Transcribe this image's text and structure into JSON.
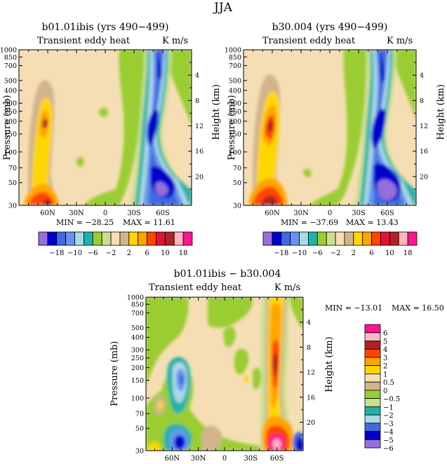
{
  "page": {
    "title": "JJA"
  },
  "colorbar_top": {
    "labels": [
      "-18",
      "-10",
      "-6",
      "-2",
      "2",
      "6",
      "10",
      "18"
    ],
    "colors": [
      "#9370db",
      "#0000cd",
      "#4169e1",
      "#6495ed",
      "#add8e6",
      "#20b2aa",
      "#9acd32",
      "#c8e090",
      "#f5deb3",
      "#d2b48c",
      "#ffd700",
      "#ffa500",
      "#ff4500",
      "#dc143c",
      "#b22222",
      "#ffb6c1",
      "#ff1493"
    ]
  },
  "colorbar_bottom": {
    "labels": [
      "6",
      "5",
      "4",
      "3",
      "2",
      "1",
      "0.5",
      "0",
      "-0.5",
      "-1",
      "-2",
      "-3",
      "-4",
      "-5",
      "-6"
    ],
    "colors": [
      "#ff1493",
      "#ffb6c1",
      "#b22222",
      "#ff4500",
      "#ffa500",
      "#ffd700",
      "#f5deb3",
      "#d2b48c",
      "#9acd32",
      "#c8e090",
      "#20b2aa",
      "#add8e6",
      "#4169e1",
      "#0000cd",
      "#9370db"
    ]
  },
  "chart_data": [
    {
      "type": "heatmap",
      "title": "b01.01ibis (yrs 490-499)",
      "subtitle_left": "Transient eddy heat",
      "subtitle_right": "K m/s",
      "ylabel": "Pressure (mb)",
      "ylabel_right": "Height (km)",
      "x_ticks": [
        "60N",
        "30N",
        "0",
        "30S",
        "60S"
      ],
      "x_tick_values": [
        60,
        30,
        0,
        -30,
        -60
      ],
      "xlim": [
        90,
        -90
      ],
      "y_ticks": [
        "30",
        "50",
        "70",
        "100",
        "150",
        "200",
        "250",
        "300",
        "400",
        "500",
        "700",
        "850",
        "1000"
      ],
      "y_tick_values": [
        30,
        50,
        70,
        100,
        150,
        200,
        250,
        300,
        400,
        500,
        700,
        850,
        1000
      ],
      "y_scale": "log",
      "ylim": [
        1000,
        30
      ],
      "height_ticks": [
        "20",
        "16",
        "12",
        "8",
        "4"
      ],
      "height_tick_values": [
        20,
        16,
        12,
        8,
        4
      ],
      "min_label": "MIN = -28.25",
      "max_label": "MAX = 11.61",
      "min": -28.25,
      "max": 11.61
    },
    {
      "type": "heatmap",
      "title": "b30.004 (yrs 490-499)",
      "subtitle_left": "Transient eddy heat",
      "subtitle_right": "K m/s",
      "ylabel": "Pressure (mb)",
      "ylabel_right": "Height (km)",
      "x_ticks": [
        "60N",
        "30N",
        "0",
        "30S",
        "60S"
      ],
      "x_tick_values": [
        60,
        30,
        0,
        -30,
        -60
      ],
      "xlim": [
        90,
        -90
      ],
      "y_ticks": [
        "30",
        "50",
        "70",
        "100",
        "150",
        "200",
        "250",
        "300",
        "400",
        "500",
        "700",
        "850",
        "1000"
      ],
      "y_tick_values": [
        30,
        50,
        70,
        100,
        150,
        200,
        250,
        300,
        400,
        500,
        700,
        850,
        1000
      ],
      "y_scale": "log",
      "ylim": [
        1000,
        30
      ],
      "height_ticks": [
        "20",
        "16",
        "12",
        "8",
        "4"
      ],
      "height_tick_values": [
        20,
        16,
        12,
        8,
        4
      ],
      "min_label": "MIN = -37.69",
      "max_label": "MAX = 13.43",
      "min": -37.69,
      "max": 13.43
    },
    {
      "type": "heatmap",
      "title": "b01.01ibis - b30.004",
      "subtitle_left": "Transient eddy heat",
      "subtitle_right": "K m/s",
      "ylabel": "Pressure (mb)",
      "ylabel_right": "Height (km)",
      "x_ticks": [
        "60N",
        "30N",
        "0",
        "30S",
        "60S"
      ],
      "x_tick_values": [
        60,
        30,
        0,
        -30,
        -60
      ],
      "xlim": [
        90,
        -90
      ],
      "y_ticks": [
        "30",
        "50",
        "70",
        "100",
        "150",
        "200",
        "250",
        "300",
        "400",
        "500",
        "700",
        "850",
        "1000"
      ],
      "y_tick_values": [
        30,
        50,
        70,
        100,
        150,
        200,
        250,
        300,
        400,
        500,
        700,
        850,
        1000
      ],
      "y_scale": "log",
      "ylim": [
        1000,
        30
      ],
      "height_ticks": [
        "20",
        "16",
        "12",
        "8",
        "4"
      ],
      "height_tick_values": [
        20,
        16,
        12,
        8,
        4
      ],
      "min_label": "MIN = -13.01",
      "max_label": "MAX = 16.50",
      "min": -13.01,
      "max": 16.5
    }
  ]
}
